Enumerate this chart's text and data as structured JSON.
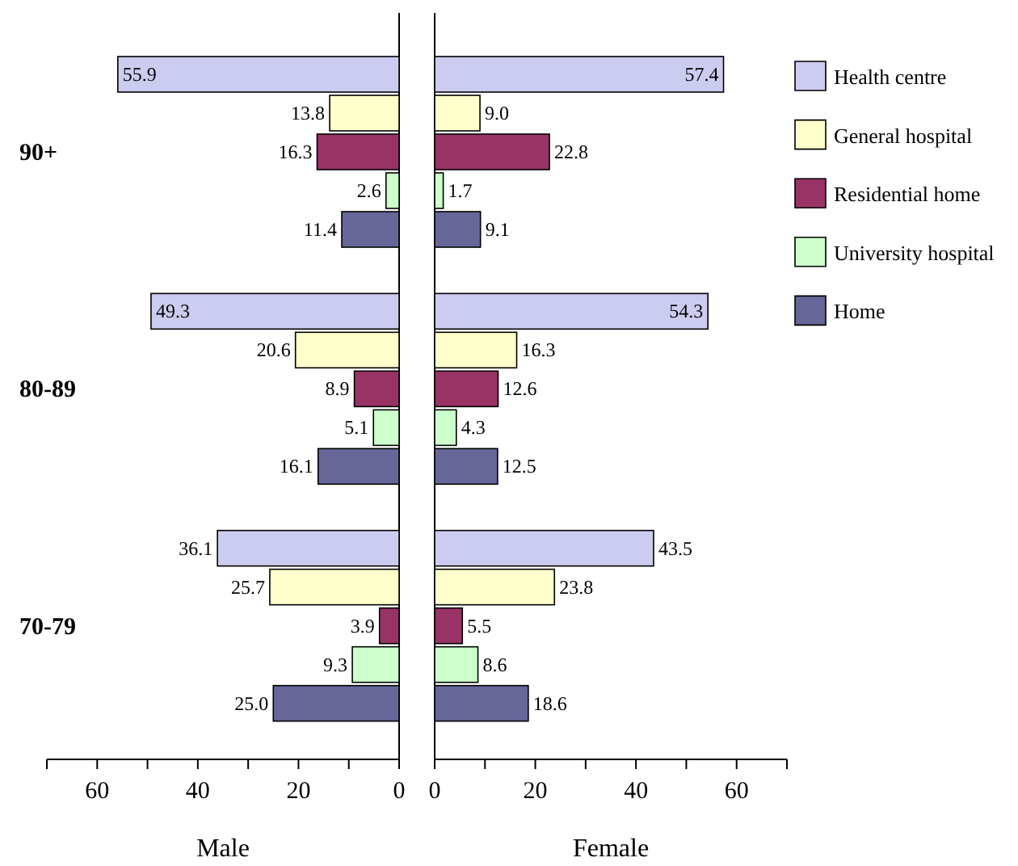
{
  "chart_data": [
    {
      "type": "bar",
      "orientation": "horizontal",
      "xlabel": "Male",
      "categories": [
        "90+",
        "80-89",
        "70-79"
      ],
      "xlim": [
        70,
        0
      ],
      "xticks": [
        {
          "value": 70,
          "label": null
        },
        60,
        {
          "value": 50,
          "label": null
        },
        40,
        {
          "value": 30,
          "label": null
        },
        20,
        {
          "value": 10,
          "label": null
        },
        0
      ],
      "legend": "right",
      "series": [
        {
          "name": "Health centre",
          "color": "#ccccf0",
          "values": [
            55.9,
            49.3,
            36.1
          ],
          "value_labels": [
            "55.9",
            "49.3",
            "36.1"
          ]
        },
        {
          "name": "General hospital",
          "color": "#ffffcc",
          "values": [
            13.8,
            20.6,
            25.7
          ],
          "value_labels": [
            "13.8",
            "20.6",
            "25.7"
          ]
        },
        {
          "name": "Residential home",
          "color": "#993366",
          "values": [
            16.3,
            8.9,
            3.9
          ],
          "value_labels": [
            "16.3",
            "8.9",
            "3.9"
          ]
        },
        {
          "name": "University hospital",
          "color": "#ccffcc",
          "values": [
            2.6,
            5.1,
            9.3
          ],
          "value_labels": [
            "2.6",
            "5.1",
            "9.3"
          ]
        },
        {
          "name": "Home",
          "color": "#666699",
          "values": [
            11.4,
            16.1,
            25.0
          ],
          "value_labels": [
            "11.4",
            "16.1",
            "25.0"
          ]
        }
      ]
    },
    {
      "type": "bar",
      "orientation": "horizontal",
      "xlabel": "Female",
      "categories": [
        null,
        null,
        null
      ],
      "xlim": [
        0,
        70
      ],
      "xticks": [
        0,
        {
          "value": 10,
          "label": null
        },
        20,
        {
          "value": 30,
          "label": null
        },
        40,
        {
          "value": 50,
          "label": null
        },
        60,
        {
          "value": 70,
          "label": null
        }
      ],
      "tick_labels": "x",
      "series": [
        {
          "color": "#ccccf0",
          "values": [
            57.4,
            54.3,
            43.5
          ],
          "value_labels": [
            "57.4",
            "54.3",
            "43.5"
          ]
        },
        {
          "color": "#ffffcc",
          "values": [
            9.0,
            16.3,
            23.8
          ],
          "value_labels": [
            "9.0",
            "16.3",
            "23.8"
          ]
        },
        {
          "color": "#993366",
          "values": [
            22.8,
            12.6,
            5.5
          ],
          "value_labels": [
            "22.8",
            "12.6",
            "5.5"
          ]
        },
        {
          "color": "#ccffcc",
          "values": [
            1.7,
            4.3,
            8.6
          ],
          "value_labels": [
            "1.7",
            "4.3",
            "8.6"
          ]
        },
        {
          "color": "#666699",
          "values": [
            9.1,
            12.5,
            18.6
          ],
          "value_labels": [
            "9.1",
            "12.5",
            "18.6"
          ]
        }
      ]
    }
  ]
}
